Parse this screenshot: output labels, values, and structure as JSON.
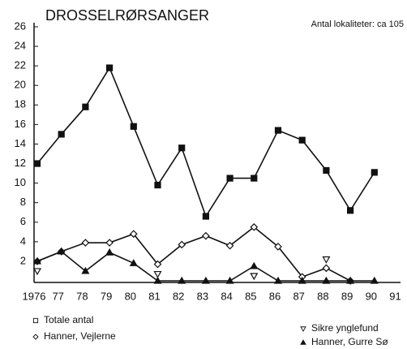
{
  "chart_data": {
    "type": "line",
    "title": "DROSSELRØRSANGER",
    "annotation": "Antal lokaliteter: ca 105",
    "categories": [
      "1976",
      "77",
      "78",
      "79",
      "80",
      "81",
      "82",
      "83",
      "84",
      "85",
      "86",
      "87",
      "88",
      "89",
      "90",
      "91"
    ],
    "ylim": [
      0,
      26
    ],
    "yticks": [
      2,
      4,
      6,
      8,
      10,
      12,
      14,
      16,
      18,
      20,
      22,
      24,
      26
    ],
    "series": [
      {
        "name": "Totale antal",
        "color": "#111111",
        "marker": "square",
        "line": true,
        "values": [
          12,
          15,
          17.8,
          21.8,
          15.8,
          9.8,
          13.6,
          6.6,
          10.5,
          10.5,
          15.4,
          14.4,
          11.3,
          7.2,
          11.1,
          null
        ]
      },
      {
        "name": "Hanner, Vejlerne",
        "color": "#111111",
        "marker": "diamond",
        "line": true,
        "values": [
          2,
          3,
          3.9,
          3.9,
          4.8,
          1.7,
          3.7,
          4.6,
          3.6,
          5.5,
          3.5,
          0.4,
          1.3,
          0,
          null,
          null
        ]
      },
      {
        "name": "Sikre ynglefund",
        "color": "#111111",
        "marker": "triangle-down",
        "line": false,
        "values": [
          1,
          null,
          null,
          null,
          null,
          0.7,
          null,
          null,
          null,
          0.5,
          null,
          null,
          2.2,
          null,
          null,
          null
        ]
      },
      {
        "name": "Hanner, Gurre Sø",
        "color": "#111111",
        "marker": "triangle-up",
        "line": true,
        "values": [
          2,
          3,
          1,
          2.9,
          1.8,
          0,
          0,
          0,
          0,
          1.5,
          0,
          0,
          0,
          0,
          0,
          null
        ]
      }
    ]
  }
}
